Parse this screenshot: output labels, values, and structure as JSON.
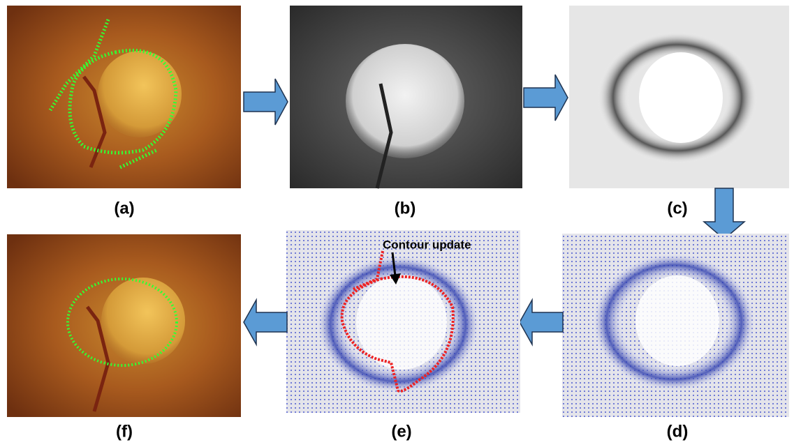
{
  "panels": [
    {
      "label": "(a)"
    },
    {
      "label": "(b)"
    },
    {
      "label": "(c)"
    },
    {
      "label": "(d)"
    },
    {
      "label": "(e)",
      "annotation": "Contour update"
    },
    {
      "label": "(f)"
    }
  ]
}
